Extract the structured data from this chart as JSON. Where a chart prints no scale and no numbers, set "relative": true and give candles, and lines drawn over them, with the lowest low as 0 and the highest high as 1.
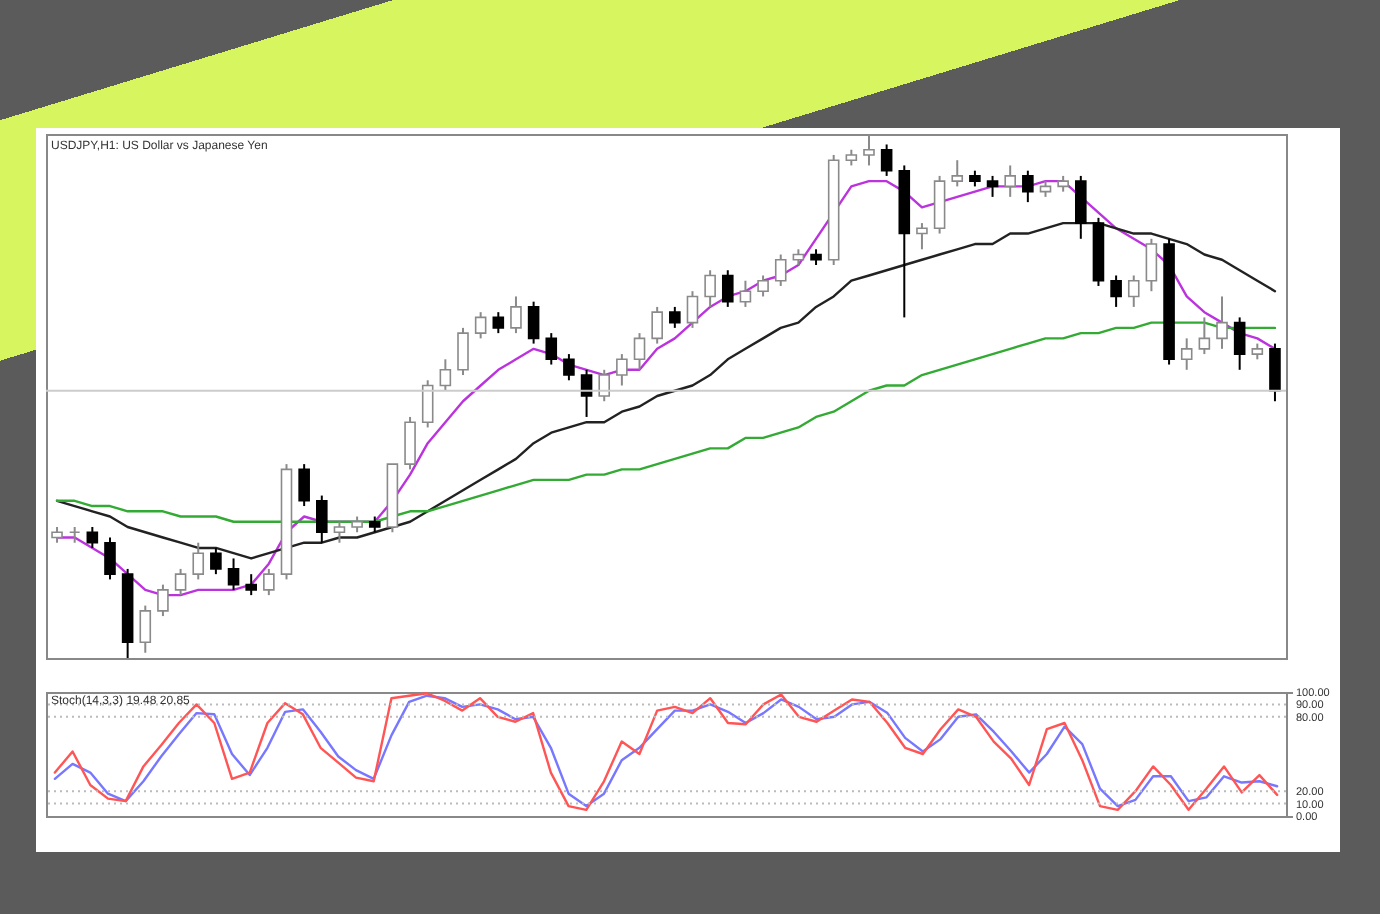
{
  "chart_data": [
    {
      "type": "candlestick",
      "title": "USDJPY,H1: US Dollar vs Japanese Yen",
      "relative": true,
      "tick_labels": false,
      "categories": [
        null,
        null,
        null,
        null,
        null,
        null,
        null,
        null,
        null,
        null,
        null,
        null,
        null,
        null,
        null,
        null,
        null,
        null,
        null,
        null,
        null,
        null,
        null,
        null,
        null,
        null,
        null,
        null,
        null,
        null,
        null,
        null,
        null,
        null,
        null,
        null,
        null,
        null,
        null,
        null,
        null,
        null,
        null,
        null,
        null,
        null,
        null,
        null,
        null,
        null,
        null,
        null,
        null,
        null,
        null,
        null,
        null,
        null,
        null,
        null,
        null,
        null,
        null,
        null,
        null,
        null,
        null,
        null,
        null,
        null
      ],
      "ohlc": [
        [
          0.23,
          0.25,
          0.22,
          0.24
        ],
        [
          0.24,
          0.25,
          0.22,
          0.24
        ],
        [
          0.24,
          0.25,
          0.21,
          0.22
        ],
        [
          0.22,
          0.23,
          0.15,
          0.16
        ],
        [
          0.16,
          0.17,
          0,
          0.03
        ],
        [
          0.03,
          0.1,
          0.01,
          0.09
        ],
        [
          0.09,
          0.14,
          0.08,
          0.13
        ],
        [
          0.13,
          0.17,
          0.12,
          0.16
        ],
        [
          0.16,
          0.22,
          0.15,
          0.2
        ],
        [
          0.2,
          0.21,
          0.16,
          0.17
        ],
        [
          0.17,
          0.19,
          0.13,
          0.14
        ],
        [
          0.14,
          0.16,
          0.12,
          0.13
        ],
        [
          0.13,
          0.17,
          0.12,
          0.16
        ],
        [
          0.16,
          0.37,
          0.15,
          0.36
        ],
        [
          0.36,
          0.37,
          0.29,
          0.3
        ],
        [
          0.3,
          0.31,
          0.22,
          0.24
        ],
        [
          0.24,
          0.26,
          0.22,
          0.25
        ],
        [
          0.25,
          0.27,
          0.24,
          0.26
        ],
        [
          0.26,
          0.27,
          0.24,
          0.25
        ],
        [
          0.25,
          0.37,
          0.24,
          0.37
        ],
        [
          0.37,
          0.46,
          0.36,
          0.45
        ],
        [
          0.45,
          0.53,
          0.44,
          0.52
        ],
        [
          0.52,
          0.57,
          0.51,
          0.55
        ],
        [
          0.55,
          0.63,
          0.54,
          0.62
        ],
        [
          0.62,
          0.66,
          0.61,
          0.65
        ],
        [
          0.65,
          0.66,
          0.62,
          0.63
        ],
        [
          0.63,
          0.69,
          0.62,
          0.67
        ],
        [
          0.67,
          0.68,
          0.6,
          0.61
        ],
        [
          0.61,
          0.62,
          0.56,
          0.57
        ],
        [
          0.57,
          0.58,
          0.53,
          0.54
        ],
        [
          0.54,
          0.55,
          0.46,
          0.5
        ],
        [
          0.5,
          0.55,
          0.49,
          0.54
        ],
        [
          0.54,
          0.58,
          0.52,
          0.57
        ],
        [
          0.57,
          0.62,
          0.55,
          0.61
        ],
        [
          0.61,
          0.67,
          0.6,
          0.66
        ],
        [
          0.66,
          0.67,
          0.63,
          0.64
        ],
        [
          0.64,
          0.7,
          0.63,
          0.69
        ],
        [
          0.69,
          0.74,
          0.67,
          0.73
        ],
        [
          0.73,
          0.74,
          0.67,
          0.68
        ],
        [
          0.68,
          0.72,
          0.67,
          0.7
        ],
        [
          0.7,
          0.73,
          0.69,
          0.72
        ],
        [
          0.72,
          0.77,
          0.71,
          0.76
        ],
        [
          0.76,
          0.78,
          0.75,
          0.77
        ],
        [
          0.77,
          0.78,
          0.75,
          0.76
        ],
        [
          0.76,
          0.96,
          0.75,
          0.95
        ],
        [
          0.95,
          0.97,
          0.94,
          0.96
        ],
        [
          0.96,
          1.0,
          0.94,
          0.97
        ],
        [
          0.97,
          0.98,
          0.92,
          0.93
        ],
        [
          0.93,
          0.94,
          0.65,
          0.81
        ],
        [
          0.81,
          0.83,
          0.78,
          0.82
        ],
        [
          0.82,
          0.92,
          0.81,
          0.91
        ],
        [
          0.91,
          0.95,
          0.9,
          0.92
        ],
        [
          0.92,
          0.93,
          0.9,
          0.91
        ],
        [
          0.91,
          0.92,
          0.88,
          0.9
        ],
        [
          0.9,
          0.94,
          0.88,
          0.92
        ],
        [
          0.92,
          0.93,
          0.87,
          0.89
        ],
        [
          0.89,
          0.91,
          0.88,
          0.9
        ],
        [
          0.9,
          0.92,
          0.89,
          0.91
        ],
        [
          0.91,
          0.92,
          0.8,
          0.83
        ],
        [
          0.83,
          0.84,
          0.71,
          0.72
        ],
        [
          0.72,
          0.73,
          0.67,
          0.69
        ],
        [
          0.69,
          0.73,
          0.67,
          0.72
        ],
        [
          0.72,
          0.8,
          0.7,
          0.79
        ],
        [
          0.79,
          0.8,
          0.56,
          0.57
        ],
        [
          0.57,
          0.61,
          0.55,
          0.59
        ],
        [
          0.59,
          0.65,
          0.58,
          0.61
        ],
        [
          0.61,
          0.69,
          0.59,
          0.64
        ],
        [
          0.64,
          0.65,
          0.55,
          0.58
        ],
        [
          0.58,
          0.6,
          0.57,
          0.59
        ],
        [
          0.59,
          0.6,
          0.49,
          0.51
        ]
      ],
      "series": [
        {
          "type": "line",
          "color": "#bb33dd",
          "values": [
            0.23,
            0.23,
            0.21,
            0.19,
            0.16,
            0.13,
            0.12,
            0.12,
            0.13,
            0.13,
            0.13,
            0.14,
            0.18,
            0.24,
            0.27,
            0.26,
            0.26,
            0.26,
            0.26,
            0.3,
            0.35,
            0.41,
            0.45,
            0.49,
            0.52,
            0.55,
            0.57,
            0.59,
            0.58,
            0.56,
            0.55,
            0.54,
            0.55,
            0.55,
            0.59,
            0.61,
            0.64,
            0.67,
            0.69,
            0.7,
            0.72,
            0.73,
            0.75,
            0.8,
            0.85,
            0.9,
            0.91,
            0.91,
            0.89,
            0.86,
            0.87,
            0.88,
            0.89,
            0.9,
            0.9,
            0.9,
            0.91,
            0.91,
            0.88,
            0.85,
            0.82,
            0.8,
            0.78,
            0.75,
            0.69,
            0.66,
            0.64,
            0.62,
            0.61,
            0.59
          ]
        },
        {
          "type": "line",
          "color": "#222222",
          "values": [
            0.3,
            0.29,
            0.28,
            0.27,
            0.25,
            0.24,
            0.23,
            0.22,
            0.21,
            0.21,
            0.2,
            0.19,
            0.2,
            0.21,
            0.22,
            0.22,
            0.23,
            0.23,
            0.24,
            0.25,
            0.26,
            0.28,
            0.3,
            0.32,
            0.34,
            0.36,
            0.38,
            0.41,
            0.43,
            0.44,
            0.45,
            0.45,
            0.47,
            0.48,
            0.5,
            0.51,
            0.52,
            0.54,
            0.57,
            0.59,
            0.61,
            0.63,
            0.64,
            0.67,
            0.69,
            0.72,
            0.73,
            0.74,
            0.75,
            0.76,
            0.77,
            0.78,
            0.79,
            0.79,
            0.81,
            0.81,
            0.82,
            0.83,
            0.83,
            0.83,
            0.82,
            0.81,
            0.81,
            0.8,
            0.79,
            0.77,
            0.76,
            0.74,
            0.72,
            0.7
          ]
        },
        {
          "type": "line",
          "color": "#33aa33",
          "values": [
            0.3,
            0.3,
            0.29,
            0.29,
            0.28,
            0.28,
            0.28,
            0.27,
            0.27,
            0.27,
            0.26,
            0.26,
            0.26,
            0.26,
            0.26,
            0.26,
            0.26,
            0.26,
            0.26,
            0.27,
            0.28,
            0.28,
            0.29,
            0.3,
            0.31,
            0.32,
            0.33,
            0.34,
            0.34,
            0.34,
            0.35,
            0.35,
            0.36,
            0.36,
            0.37,
            0.38,
            0.39,
            0.4,
            0.4,
            0.42,
            0.42,
            0.43,
            0.44,
            0.46,
            0.47,
            0.49,
            0.51,
            0.52,
            0.52,
            0.54,
            0.55,
            0.56,
            0.57,
            0.58,
            0.59,
            0.6,
            0.61,
            0.61,
            0.62,
            0.62,
            0.63,
            0.63,
            0.64,
            0.64,
            0.64,
            0.64,
            0.63,
            0.63,
            0.63,
            0.63
          ]
        }
      ],
      "ref_lines": [
        {
          "axis": "y",
          "value": 0.51,
          "color": "#cccccc",
          "line_style": "solid"
        }
      ]
    },
    {
      "type": "line",
      "title": "Stoch(14,3,3) 19.48 20.85",
      "tick_labels": "y",
      "ylim": [
        0,
        100
      ],
      "yticks": [
        {
          "value": 100,
          "label": "100.00"
        },
        {
          "value": 90,
          "label": "90.00"
        },
        {
          "value": 80,
          "label": "80.00"
        },
        {
          "value": 20,
          "label": "20.00"
        },
        {
          "value": 10,
          "label": "10.00"
        },
        {
          "value": 0,
          "label": "0.00"
        }
      ],
      "categories": [
        null,
        null,
        null,
        null,
        null,
        null,
        null,
        null,
        null,
        null,
        null,
        null,
        null,
        null,
        null,
        null,
        null,
        null,
        null,
        null,
        null,
        null,
        null,
        null,
        null,
        null,
        null,
        null,
        null,
        null,
        null,
        null,
        null,
        null,
        null,
        null,
        null,
        null,
        null,
        null,
        null,
        null,
        null,
        null,
        null,
        null,
        null,
        null,
        null,
        null,
        null,
        null,
        null,
        null,
        null,
        null,
        null,
        null,
        null,
        null,
        null,
        null,
        null,
        null,
        null,
        null,
        null,
        null,
        null,
        null
      ],
      "series": [
        {
          "color": "#7777ff",
          "values": [
            30,
            42,
            35,
            18,
            12,
            28,
            48,
            66,
            83,
            82,
            50,
            33,
            55,
            84,
            86,
            68,
            48,
            37,
            30,
            65,
            92,
            97,
            95,
            88,
            90,
            86,
            78,
            80,
            55,
            18,
            8,
            18,
            45,
            55,
            70,
            85,
            85,
            90,
            84,
            75,
            83,
            94,
            88,
            78,
            80,
            90,
            92,
            83,
            63,
            52,
            62,
            80,
            82,
            68,
            52,
            35,
            50,
            72,
            58,
            22,
            8,
            13,
            32,
            32,
            12,
            15,
            32,
            27,
            28,
            24
          ]
        },
        {
          "color": "#ff5555",
          "values": [
            35,
            52,
            25,
            14,
            12,
            40,
            57,
            75,
            90,
            75,
            30,
            35,
            75,
            91,
            82,
            55,
            43,
            31,
            28,
            95,
            97,
            99,
            93,
            85,
            95,
            80,
            76,
            83,
            35,
            8,
            5,
            28,
            60,
            50,
            85,
            88,
            83,
            95,
            75,
            74,
            90,
            98,
            80,
            76,
            85,
            94,
            92,
            75,
            55,
            50,
            70,
            86,
            80,
            60,
            46,
            25,
            70,
            75,
            45,
            8,
            5,
            20,
            40,
            25,
            5,
            22,
            40,
            19,
            33,
            17
          ]
        }
      ],
      "ref_lines": [
        {
          "axis": "y",
          "value": 90,
          "color": "#bbbbbb",
          "line_style": "dotted"
        },
        {
          "axis": "y",
          "value": 80,
          "color": "#bbbbbb",
          "line_style": "dotted"
        },
        {
          "axis": "y",
          "value": 20,
          "color": "#bbbbbb",
          "line_style": "dotted"
        },
        {
          "axis": "y",
          "value": 10,
          "color": "#bbbbbb",
          "line_style": "dotted"
        }
      ]
    }
  ]
}
